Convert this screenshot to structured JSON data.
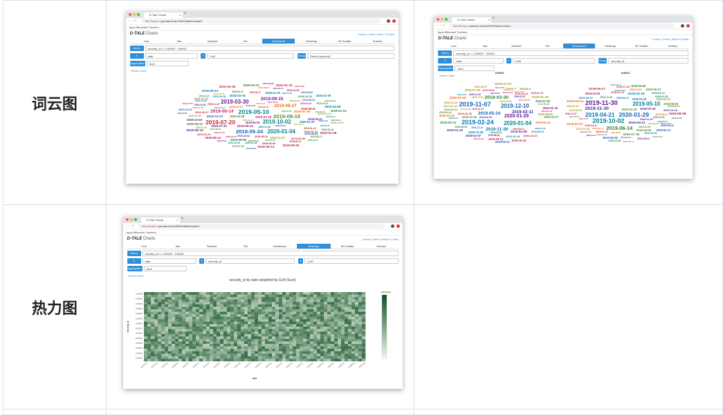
{
  "rows": [
    {
      "label": "词云图"
    },
    {
      "label": "热力图"
    }
  ],
  "browser": {
    "tab_title": "D-Tale Charts",
    "tab_close": "×",
    "new_tab": "+",
    "nav": "‹ › C",
    "url_warn": "Not Secure",
    "url": "pandas.local:40000/dtale/charts/1",
    "bookmarks": "Apps   Bitbucket   Trackers"
  },
  "app": {
    "logo": "D-TALE",
    "logo_sub": "Charts",
    "header_links": "Lookup Charts  |  Back To Data"
  },
  "chart_tabs": [
    "Line",
    "Bar",
    "Stacked",
    "Pie",
    "Wordcloud",
    "Heatmap",
    "3D Scatter",
    "Surface"
  ],
  "form": {
    "query_label": "Query",
    "query_value": "security_id == 100000 · 100001",
    "x_label": "X",
    "x_value": "date",
    "y_label": "Y",
    "y_value": "Col0",
    "y2_value": "security_id",
    "z_label": "Z",
    "z_value": "Col0",
    "group_label": "Group",
    "group_value": "Select (optional)",
    "group2_value": "security_id",
    "agg_label": "Aggregation",
    "agg_value": "Sum",
    "reset": "Reset Chart"
  },
  "wordcloud": {
    "words": [
      "2019-06-14",
      "2019-04-08",
      "2020-01-22",
      "2019-12-28",
      "2019-05-24",
      "2020-01-18",
      "2019-03-30",
      "2019-07-20",
      "2019-05-10",
      "2019-02-11",
      "2019-08-26",
      "2019-11-30",
      "2020-01-04",
      "2019-09-15",
      "2019-10-02",
      "2019-06-27",
      "2020-02-07",
      "2019-01-19",
      "2019-07-30",
      "2019-03-12",
      "2019-08-06",
      "2019-12-10",
      "2019-04-21",
      "2019-11-07",
      "2019-05-31",
      "2019-09-28",
      "2020-01-29",
      "2019-02-24",
      "2019-10-18",
      "2019-06-05"
    ],
    "colors": [
      "#2e7d32",
      "#1565c0",
      "#c62828",
      "#6a1b9a",
      "#ef6c00",
      "#00838f",
      "#ad1457",
      "#558b2f",
      "#4527a0",
      "#9e9d24",
      "#d81b60",
      "#0277bd"
    ],
    "sub_title_a": "100000",
    "sub_title_b": "100001"
  },
  "heatmap": {
    "title": "security_id by date weighted by Col0 (Sum)",
    "ylabel": "security_id",
    "xlabel": "date",
    "legend_title": "Col0 (Sum)",
    "y_tick": "100000",
    "x_tick": "2019-01",
    "color_low": "#f1f8ee",
    "color_high": "#0b4d1f"
  }
}
